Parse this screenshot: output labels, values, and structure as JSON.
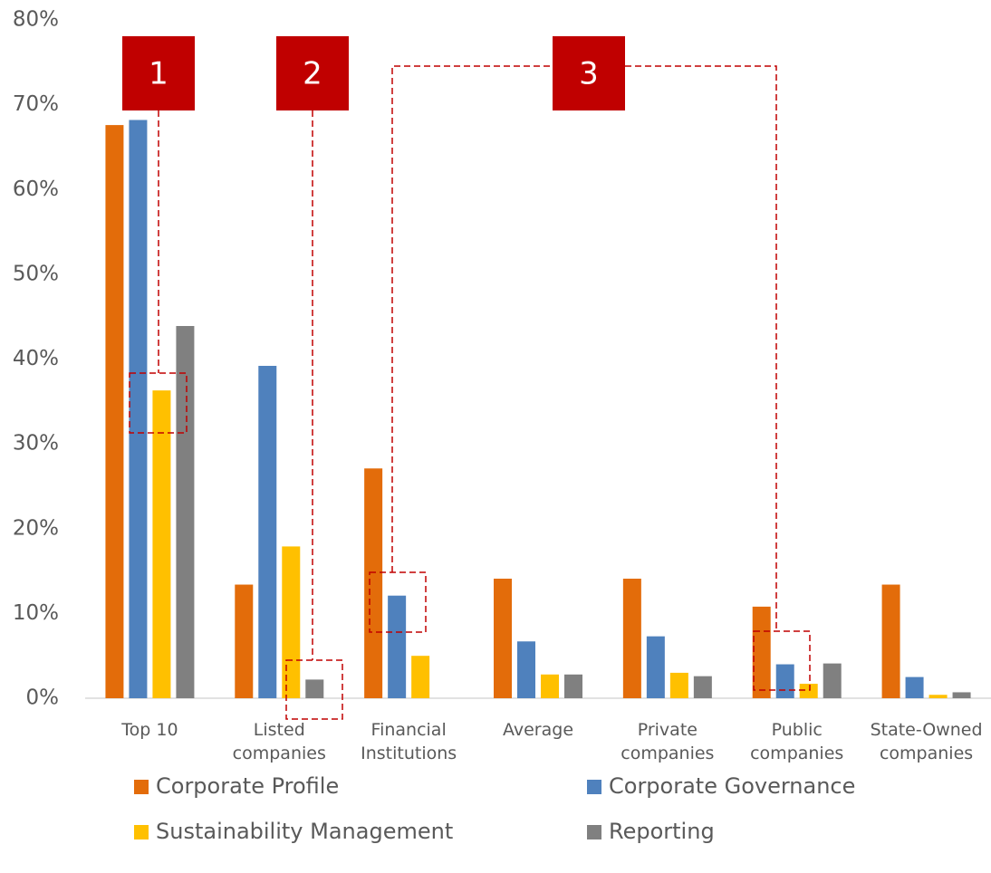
{
  "chart_data": {
    "type": "bar",
    "categories": [
      "Top 10",
      "Listed\ncompanies",
      "Financial\nInstitutions",
      "Average",
      "Private\ncompanies",
      "Public\ncompanies",
      "State-Owned\ncompanies"
    ],
    "series": [
      {
        "name": "Corporate Profile",
        "color": "#E36C0A",
        "values": [
          67.6,
          13.4,
          27.1,
          14.1,
          14.1,
          10.8,
          13.4
        ]
      },
      {
        "name": "Corporate Governance",
        "color": "#4F81BD",
        "values": [
          68.2,
          39.2,
          12.1,
          6.7,
          7.3,
          4.0,
          2.5
        ]
      },
      {
        "name": "Sustainability Management",
        "color": "#FFC000",
        "values": [
          36.3,
          17.9,
          5.0,
          2.8,
          3.0,
          1.7,
          0.4
        ]
      },
      {
        "name": "Reporting",
        "color": "#808080",
        "values": [
          43.9,
          2.2,
          0,
          2.8,
          2.6,
          4.1,
          0.7
        ]
      }
    ],
    "ylim": [
      0,
      80
    ],
    "yticks": [
      {
        "value": 0,
        "label": "0%"
      },
      {
        "value": 10,
        "label": "10%"
      },
      {
        "value": 20,
        "label": "20%"
      },
      {
        "value": 30,
        "label": "30%"
      },
      {
        "value": 40,
        "label": "40%"
      },
      {
        "value": 50,
        "label": "50%"
      },
      {
        "value": 60,
        "label": "60%"
      },
      {
        "value": 70,
        "label": "70%"
      },
      {
        "value": 80,
        "label": "80%"
      }
    ],
    "grid": false,
    "annotations": [
      "1",
      "2",
      "3"
    ]
  }
}
